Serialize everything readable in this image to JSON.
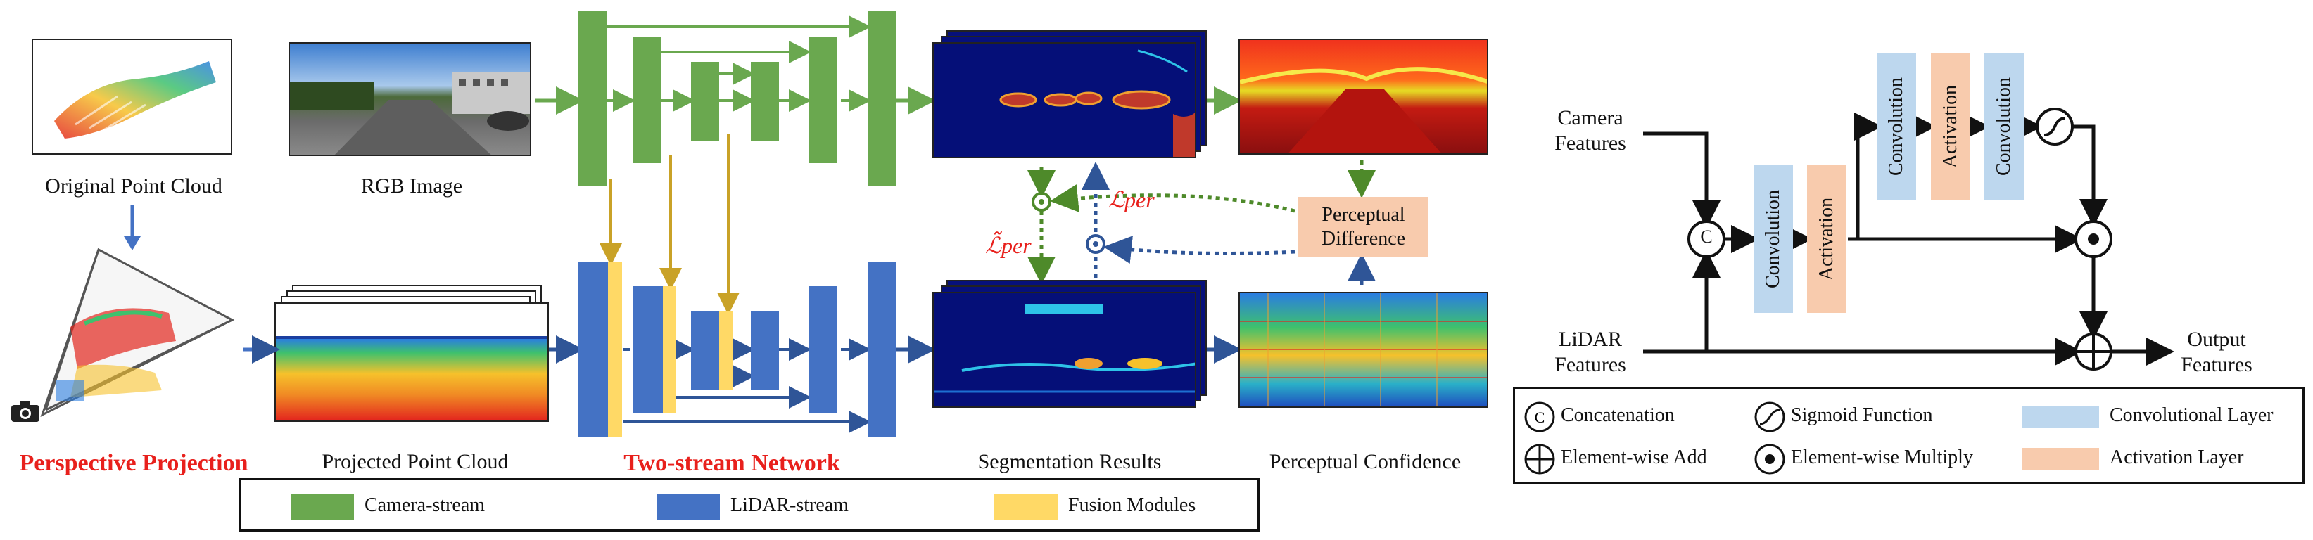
{
  "labels": {
    "original_point_cloud": "Original Point Cloud",
    "rgb_image": "RGB Image",
    "perspective_projection": "Perspective Projection",
    "projected_point_cloud": "Projected Point Cloud",
    "two_stream_network": "Two-stream Network",
    "segmentation_results": "Segmentation Results",
    "perceptual_confidence": "Perceptual Confidence",
    "perceptual_difference_1": "Perceptual",
    "perceptual_difference_2": "Difference",
    "loss_per": "ℒper",
    "loss_per_tilde": "ℒ̃per"
  },
  "legend": {
    "camera_stream": "Camera-stream",
    "lidar_stream": "LiDAR-stream",
    "fusion_modules": "Fusion Modules"
  },
  "fusion": {
    "camera_features_1": "Camera",
    "camera_features_2": "Features",
    "lidar_features_1": "LiDAR",
    "lidar_features_2": "Features",
    "output_features_1": "Output",
    "output_features_2": "Features",
    "concat_symbol": "C",
    "convolution": "Convolution",
    "activation": "Activation"
  },
  "fusion_legend": {
    "concatenation": "Concatenation",
    "sigmoid": "Sigmoid Function",
    "conv_layer": "Convolutional Layer",
    "element_add": "Element-wise Add",
    "element_mul": "Element-wise Multiply",
    "act_layer": "Activation Layer"
  },
  "colors": {
    "camera_green": "#6aa84f",
    "lidar_blue": "#4472c4",
    "fusion_yellow": "#ffd966",
    "gold_arrow": "#c9a227",
    "red_text": "#e8201c",
    "conv_fill": "#bdd7ee",
    "act_fill": "#f8cbad"
  }
}
